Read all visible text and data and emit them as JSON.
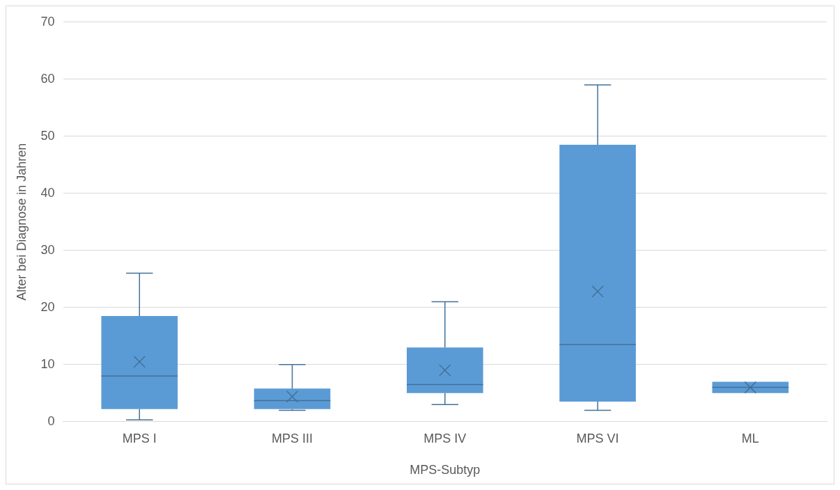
{
  "chart_data": {
    "type": "box",
    "xlabel": "MPS-Subtyp",
    "ylabel": "Alter bei Diagnose in Jahren",
    "categories": [
      "MPS I",
      "MPS III",
      "MPS IV",
      "MPS VI",
      "ML"
    ],
    "color": "#5b9bd5",
    "boxes": [
      {
        "low": 0.3,
        "q1": 2.2,
        "median": 8,
        "q3": 18.5,
        "high": 26,
        "mean": 10.5
      },
      {
        "low": 2,
        "q1": 2.2,
        "median": 3.7,
        "q3": 5.8,
        "high": 10,
        "mean": 4.4
      },
      {
        "low": 3,
        "q1": 5,
        "median": 6.5,
        "q3": 13,
        "high": 21,
        "mean": 9
      },
      {
        "low": 2,
        "q1": 3.5,
        "median": 13.5,
        "q3": 48.5,
        "high": 59,
        "mean": 22.8
      },
      {
        "low": 5,
        "q1": 5,
        "median": 6,
        "q3": 7,
        "high": 7,
        "mean": 6
      }
    ],
    "ylim": [
      0,
      70
    ],
    "yticks": [
      0,
      10,
      20,
      30,
      40,
      50,
      60,
      70
    ],
    "grid": "y"
  }
}
